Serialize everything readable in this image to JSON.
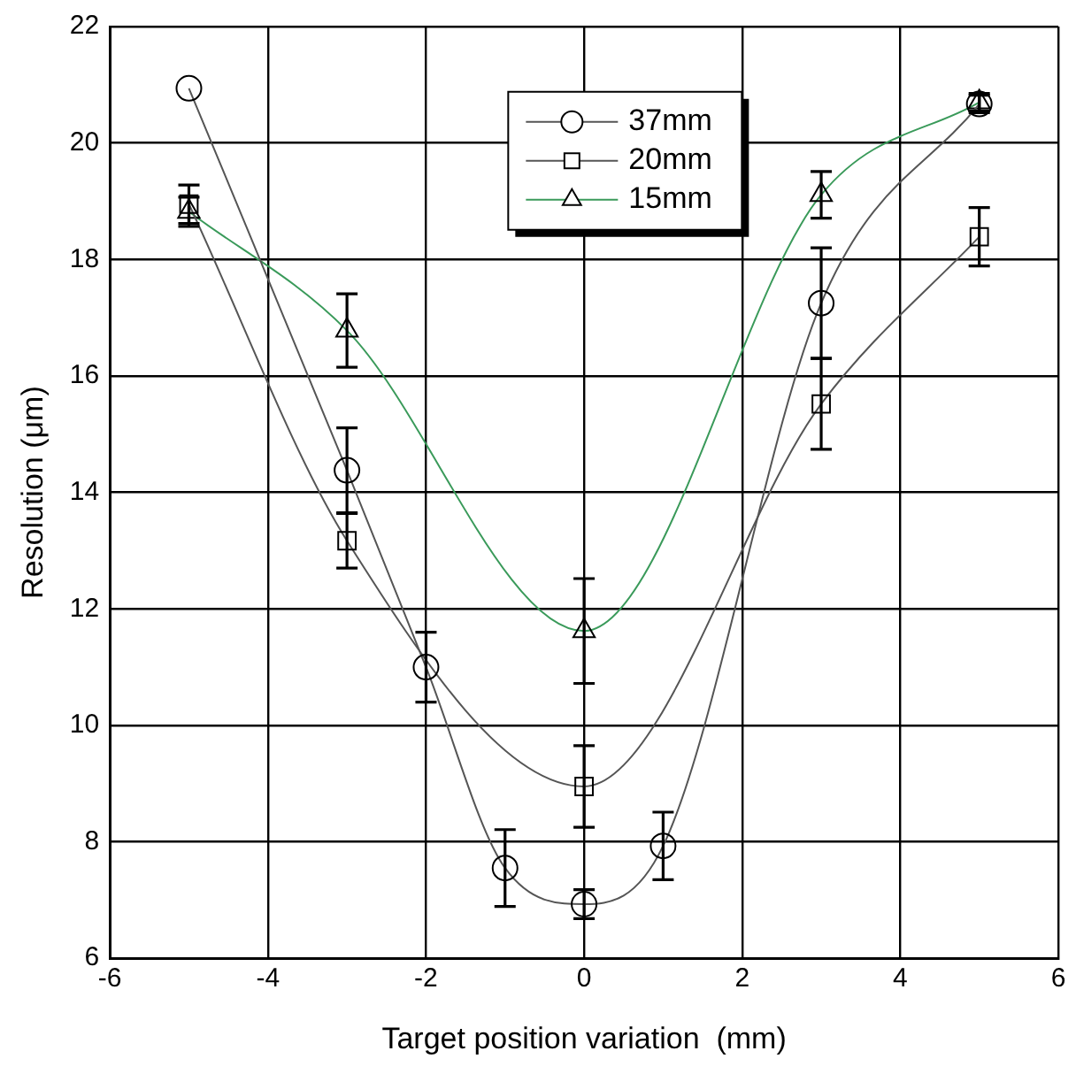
{
  "chart_data": {
    "type": "line",
    "xlabel": "Target position variation  (mm)",
    "ylabel": "Resolution (μm)",
    "xlim": [
      -6,
      6
    ],
    "xticks": [
      -6,
      -4,
      -2,
      0,
      2,
      4,
      6
    ],
    "ylim": [
      6,
      22
    ],
    "yticks": [
      6,
      8,
      10,
      12,
      14,
      16,
      18,
      20,
      22
    ],
    "grid": true,
    "legend": "top",
    "line_style": "solid",
    "series": [
      {
        "name": "37mm",
        "color": "#555555",
        "marker": "circle",
        "x": [
          -5,
          -3,
          -2,
          -1,
          0,
          1,
          3,
          5
        ],
        "values": [
          20.94,
          14.38,
          11.0,
          7.55,
          6.93,
          7.93,
          17.25,
          20.67
        ],
        "errors": [
          null,
          0.73,
          0.6,
          0.66,
          0.25,
          0.58,
          0.95,
          0.15
        ]
      },
      {
        "name": "20mm",
        "color": "#555555",
        "marker": "square",
        "x": [
          -5,
          -3,
          0,
          3,
          5
        ],
        "values": [
          18.95,
          13.17,
          8.95,
          15.52,
          18.39
        ],
        "errors": [
          0.33,
          0.47,
          0.7,
          0.78,
          0.5
        ]
      },
      {
        "name": "15mm",
        "color": "#3a9a5a",
        "marker": "triangle",
        "x": [
          -5,
          -3,
          0,
          3,
          5
        ],
        "values": [
          18.82,
          16.78,
          11.62,
          19.11,
          20.7
        ],
        "errors": [
          0.25,
          0.63,
          0.9,
          0.4,
          0.15
        ]
      }
    ]
  }
}
